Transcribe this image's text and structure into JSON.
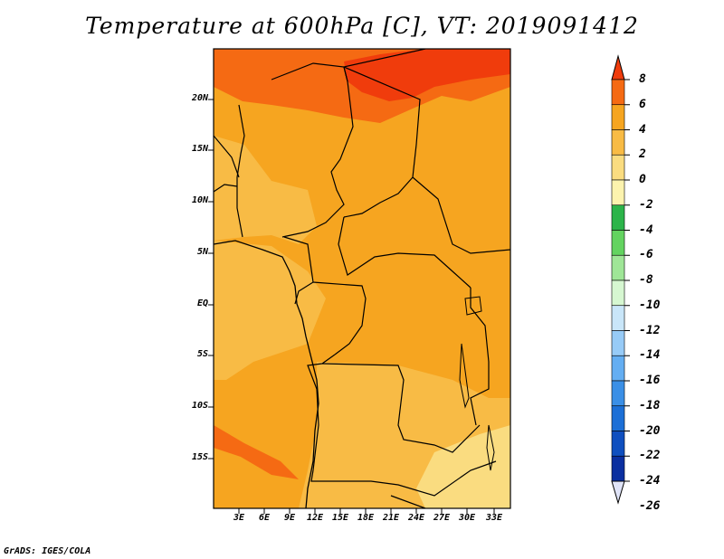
{
  "title": "Temperature at 600hPa [C], VT: 2019091412",
  "credit": "GrADS: IGES/COLA",
  "map": {
    "lat_labels": [
      "20N",
      "15N",
      "10N",
      "5N",
      "EQ",
      "5S",
      "10S",
      "15S"
    ],
    "lon_labels": [
      "3E",
      "6E",
      "9E",
      "12E",
      "15E",
      "18E",
      "21E",
      "24E",
      "27E",
      "30E",
      "33E"
    ],
    "base_color": "#f6a520"
  },
  "colorbar": {
    "labels": [
      "8",
      "6",
      "4",
      "2",
      "0",
      "-2",
      "-4",
      "-6",
      "-8",
      "-10",
      "-12",
      "-14",
      "-16",
      "-18",
      "-20",
      "-22",
      "-24",
      "-26"
    ],
    "colors": [
      "#f03c0c",
      "#f56a13",
      "#f6a520",
      "#f8bb45",
      "#fadc80",
      "#fcf3ae",
      "#2cb44a",
      "#63d360",
      "#9fe697",
      "#d6f7d1",
      "#c9e6f9",
      "#97cbf7",
      "#64aef2",
      "#3a8fe6",
      "#1c6fd6",
      "#0f4fbf",
      "#0a2fa0",
      "#e0e4f8"
    ]
  }
}
